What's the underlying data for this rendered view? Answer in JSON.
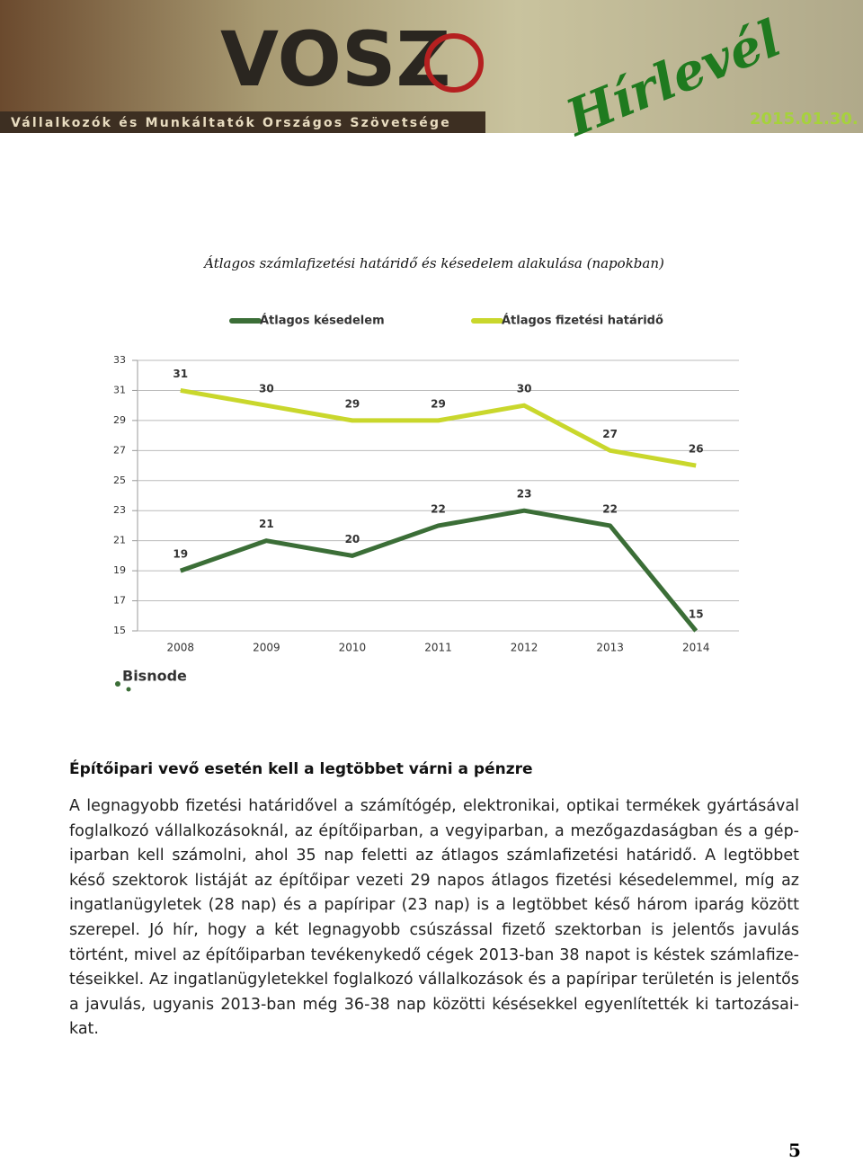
{
  "header": {
    "logo": "VOSZ",
    "subtitle": "Vállalkozók és Munkáltatók Országos Szövetsége",
    "title": "Hírlevél",
    "date": "2015.01.30."
  },
  "chart_data": {
    "type": "line",
    "title": "Átlagos számlafizetési határidő és késedelem alakulása (napokban)",
    "categories": [
      "2008",
      "2009",
      "2010",
      "2011",
      "2012",
      "2013",
      "2014"
    ],
    "series": [
      {
        "name": "Átlagos késedelem",
        "color": "#3b6e37",
        "values": [
          19,
          21,
          20,
          22,
          23,
          22,
          15
        ]
      },
      {
        "name": "Átlagos fizetési határidő",
        "color": "#c9d72c",
        "values": [
          31,
          30,
          29,
          29,
          30,
          27,
          26
        ]
      }
    ],
    "ylim": [
      15,
      33
    ],
    "yticks": [
      15,
      17,
      19,
      21,
      23,
      25,
      27,
      29,
      31,
      33
    ],
    "grid": true,
    "legend": "top",
    "source": "Bisnode"
  },
  "article": {
    "heading": "Építőipari vevő esetén kell a legtöbbet várni a pénzre",
    "lines": [
      "A legnagyobb fizetési határidővel a számítógép, elektronikai, optikai termékek gyártásával",
      "foglalkozó vállalkozásoknál, az építőiparban, a vegyiparban, a mezőgazdaságban és a gép-",
      "iparban kell számolni, ahol 35 nap feletti az átlagos számlafizetési határidő. A legtöbbet",
      "késő szektorok listáját az építőipar vezeti 29 napos átlagos fizetési késedelemmel, míg az",
      "ingatlanügyletek (28 nap) és a papíripar (23 nap) is a legtöbbet késő három iparág között",
      "szerepel. Jó hír, hogy a két legnagyobb csúszással fizető szektorban is jelentős javulás",
      "történt, mivel az építőiparban tevékenykedő cégek 2013-ban 38 napot is késtek számlafize-",
      "téseikkel. Az ingatlanügyletekkel foglalkozó vállalkozások és a papíripar területén is jelentős",
      "a javulás, ugyanis 2013-ban még 36-38 nap közötti késésekkel egyenlítették ki tartozásai-",
      "kat."
    ]
  },
  "page_number": "5"
}
